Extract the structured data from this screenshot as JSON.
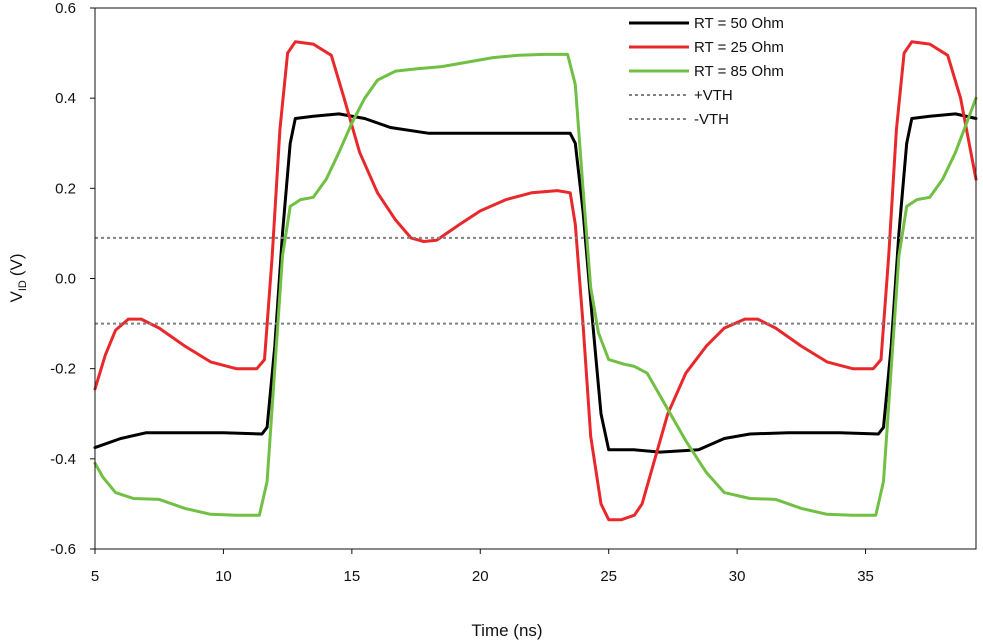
{
  "chart_data": {
    "type": "line",
    "title": "",
    "xlabel": "Time (ns)",
    "ylabel_main": "V",
    "ylabel_sub": "ID",
    "ylabel_unit": "(V)",
    "xlim": [
      5,
      39.3
    ],
    "ylim": [
      -0.6,
      0.6
    ],
    "xticks": [
      5,
      10,
      15,
      20,
      25,
      30,
      35
    ],
    "xtick_labels": [
      "5",
      "10",
      "15",
      "20",
      "25",
      "30",
      "35"
    ],
    "yticks": [
      0.6,
      0.4,
      0.2,
      0.0,
      -0.2,
      -0.4,
      -0.6
    ],
    "ytick_labels": [
      "0.6",
      "0.4",
      "0.2",
      "0.0",
      "-0.2",
      "-0.4",
      "-0.6"
    ],
    "legend_position": "top-right",
    "series": [
      {
        "name": "RT = 50 Ohm",
        "color": "#000000",
        "style": "solid",
        "points": [
          [
            5,
            -0.375
          ],
          [
            6,
            -0.355
          ],
          [
            7,
            -0.342
          ],
          [
            8,
            -0.342
          ],
          [
            10,
            -0.342
          ],
          [
            11.5,
            -0.345
          ],
          [
            11.7,
            -0.33
          ],
          [
            12.0,
            -0.15
          ],
          [
            12.3,
            0.1
          ],
          [
            12.6,
            0.3
          ],
          [
            12.8,
            0.355
          ],
          [
            13.5,
            0.36
          ],
          [
            14.5,
            0.365
          ],
          [
            15.5,
            0.355
          ],
          [
            16.5,
            0.335
          ],
          [
            18,
            0.322
          ],
          [
            20,
            0.322
          ],
          [
            22,
            0.322
          ],
          [
            23.5,
            0.322
          ],
          [
            23.7,
            0.3
          ],
          [
            24.0,
            0.15
          ],
          [
            24.3,
            -0.05
          ],
          [
            24.7,
            -0.3
          ],
          [
            25.0,
            -0.38
          ],
          [
            26,
            -0.38
          ],
          [
            27,
            -0.385
          ],
          [
            28.5,
            -0.38
          ],
          [
            29.5,
            -0.355
          ],
          [
            30.5,
            -0.345
          ],
          [
            32,
            -0.342
          ],
          [
            34,
            -0.342
          ],
          [
            35.5,
            -0.345
          ],
          [
            35.7,
            -0.33
          ],
          [
            36.0,
            -0.15
          ],
          [
            36.3,
            0.1
          ],
          [
            36.6,
            0.3
          ],
          [
            36.8,
            0.355
          ],
          [
            37.5,
            0.36
          ],
          [
            38.5,
            0.365
          ],
          [
            39.3,
            0.355
          ]
        ]
      },
      {
        "name": "RT = 25 Ohm",
        "color": "#e8282b",
        "style": "solid",
        "points": [
          [
            5,
            -0.245
          ],
          [
            5.4,
            -0.17
          ],
          [
            5.8,
            -0.115
          ],
          [
            6.3,
            -0.09
          ],
          [
            6.8,
            -0.09
          ],
          [
            7.5,
            -0.11
          ],
          [
            8.5,
            -0.15
          ],
          [
            9.5,
            -0.185
          ],
          [
            10.5,
            -0.2
          ],
          [
            11.3,
            -0.2
          ],
          [
            11.6,
            -0.18
          ],
          [
            11.9,
            0.05
          ],
          [
            12.2,
            0.33
          ],
          [
            12.5,
            0.5
          ],
          [
            12.8,
            0.525
          ],
          [
            13.5,
            0.52
          ],
          [
            14.2,
            0.495
          ],
          [
            14.7,
            0.4
          ],
          [
            15.3,
            0.28
          ],
          [
            16,
            0.19
          ],
          [
            16.7,
            0.13
          ],
          [
            17.3,
            0.09
          ],
          [
            17.8,
            0.082
          ],
          [
            18.3,
            0.085
          ],
          [
            19.2,
            0.12
          ],
          [
            20,
            0.15
          ],
          [
            21,
            0.175
          ],
          [
            22,
            0.19
          ],
          [
            23,
            0.195
          ],
          [
            23.5,
            0.19
          ],
          [
            23.7,
            0.12
          ],
          [
            24.0,
            -0.1
          ],
          [
            24.3,
            -0.35
          ],
          [
            24.7,
            -0.5
          ],
          [
            25.0,
            -0.535
          ],
          [
            25.5,
            -0.535
          ],
          [
            26,
            -0.525
          ],
          [
            26.3,
            -0.5
          ],
          [
            26.8,
            -0.4
          ],
          [
            27.3,
            -0.3
          ],
          [
            28,
            -0.21
          ],
          [
            28.8,
            -0.15
          ],
          [
            29.5,
            -0.11
          ],
          [
            30.3,
            -0.09
          ],
          [
            30.8,
            -0.09
          ],
          [
            31.5,
            -0.11
          ],
          [
            32.5,
            -0.15
          ],
          [
            33.5,
            -0.185
          ],
          [
            34.5,
            -0.2
          ],
          [
            35.3,
            -0.2
          ],
          [
            35.6,
            -0.18
          ],
          [
            35.9,
            0.05
          ],
          [
            36.2,
            0.33
          ],
          [
            36.5,
            0.5
          ],
          [
            36.8,
            0.525
          ],
          [
            37.5,
            0.52
          ],
          [
            38.2,
            0.495
          ],
          [
            38.7,
            0.4
          ],
          [
            39.3,
            0.22
          ]
        ]
      },
      {
        "name": "RT = 85 Ohm",
        "color": "#71bf44",
        "style": "solid",
        "points": [
          [
            5,
            -0.41
          ],
          [
            5.3,
            -0.44
          ],
          [
            5.8,
            -0.475
          ],
          [
            6.5,
            -0.488
          ],
          [
            7.5,
            -0.49
          ],
          [
            8.5,
            -0.51
          ],
          [
            9.5,
            -0.523
          ],
          [
            10.5,
            -0.525
          ],
          [
            11.4,
            -0.525
          ],
          [
            11.7,
            -0.45
          ],
          [
            12.0,
            -0.2
          ],
          [
            12.3,
            0.05
          ],
          [
            12.6,
            0.16
          ],
          [
            13.0,
            0.175
          ],
          [
            13.5,
            0.18
          ],
          [
            14,
            0.22
          ],
          [
            14.5,
            0.28
          ],
          [
            15,
            0.345
          ],
          [
            15.5,
            0.4
          ],
          [
            16,
            0.44
          ],
          [
            16.7,
            0.46
          ],
          [
            17.5,
            0.465
          ],
          [
            18.5,
            0.47
          ],
          [
            19.5,
            0.48
          ],
          [
            20.5,
            0.49
          ],
          [
            21.5,
            0.495
          ],
          [
            22.5,
            0.497
          ],
          [
            23.4,
            0.497
          ],
          [
            23.7,
            0.43
          ],
          [
            24.0,
            0.2
          ],
          [
            24.3,
            -0.02
          ],
          [
            24.6,
            -0.12
          ],
          [
            25.0,
            -0.18
          ],
          [
            25.6,
            -0.19
          ],
          [
            26,
            -0.195
          ],
          [
            26.5,
            -0.21
          ],
          [
            27.2,
            -0.28
          ],
          [
            28,
            -0.36
          ],
          [
            28.8,
            -0.43
          ],
          [
            29.5,
            -0.475
          ],
          [
            30.5,
            -0.488
          ],
          [
            31.5,
            -0.49
          ],
          [
            32.5,
            -0.51
          ],
          [
            33.5,
            -0.523
          ],
          [
            34.5,
            -0.525
          ],
          [
            35.4,
            -0.525
          ],
          [
            35.7,
            -0.45
          ],
          [
            36.0,
            -0.2
          ],
          [
            36.3,
            0.05
          ],
          [
            36.6,
            0.16
          ],
          [
            37.0,
            0.175
          ],
          [
            37.5,
            0.18
          ],
          [
            38,
            0.22
          ],
          [
            38.5,
            0.28
          ],
          [
            39.3,
            0.4
          ]
        ]
      },
      {
        "name": "+VTH",
        "color": "#808080",
        "style": "dotted",
        "points": [
          [
            5,
            0.09
          ],
          [
            39.3,
            0.09
          ]
        ]
      },
      {
        "name": "-VTH",
        "color": "#808080",
        "style": "dotted",
        "points": [
          [
            5,
            -0.1
          ],
          [
            39.3,
            -0.1
          ]
        ]
      }
    ]
  }
}
